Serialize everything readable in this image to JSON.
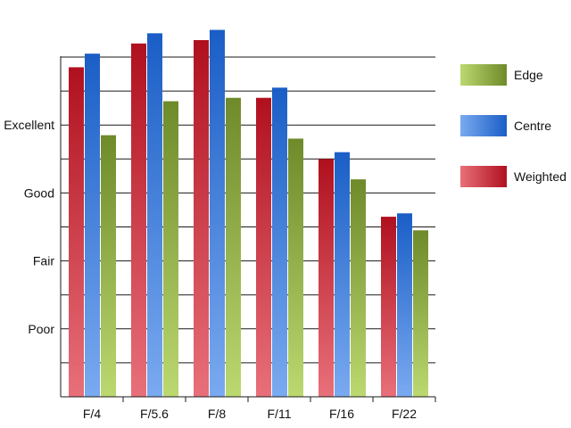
{
  "chart_data": {
    "type": "bar",
    "categories": [
      "F/4",
      "F/5.6",
      "F/8",
      "F/11",
      "F/16",
      "F/22"
    ],
    "y_tick_labels": [
      {
        "value": 2,
        "label": "Poor"
      },
      {
        "value": 4,
        "label": "Fair"
      },
      {
        "value": 6,
        "label": "Good"
      },
      {
        "value": 8,
        "label": "Excellent"
      }
    ],
    "ylim": [
      0,
      10
    ],
    "grid": true,
    "legend_position": "right",
    "series": [
      {
        "name": "Weighted",
        "color_light": "#e8707a",
        "color_dark": "#b0101e",
        "values": [
          9.7,
          10.4,
          10.5,
          8.8,
          7.0,
          5.3
        ]
      },
      {
        "name": "Centre",
        "color_light": "#7aaaf0",
        "color_dark": "#1a5ec6",
        "values": [
          10.1,
          10.7,
          10.8,
          9.1,
          7.2,
          5.4
        ]
      },
      {
        "name": "Edge",
        "color_light": "#bcd870",
        "color_dark": "#6e8a2a",
        "values": [
          7.7,
          8.7,
          8.8,
          7.6,
          6.4,
          4.9
        ]
      }
    ],
    "legend_order": [
      "Edge",
      "Centre",
      "Weighted"
    ]
  }
}
